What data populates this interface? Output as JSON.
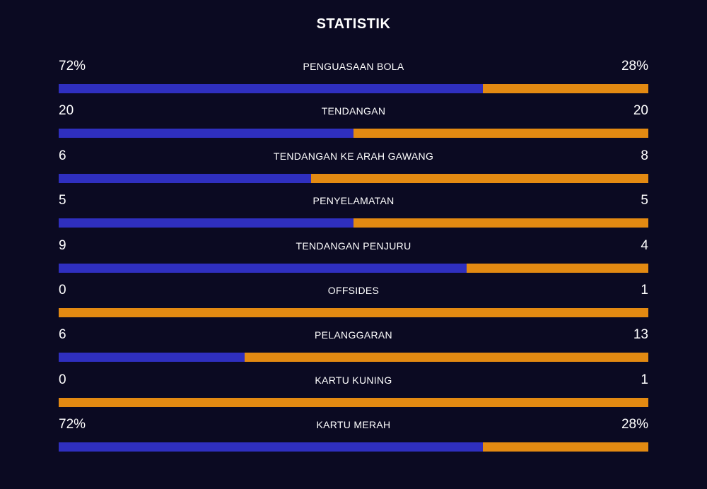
{
  "title": "STATISTIK",
  "colors": {
    "background": "#0b0a22",
    "home_bar": "#2f2fbf",
    "away_bar": "#e38a12",
    "text": "#ffffff"
  },
  "stats": [
    {
      "label": "PENGUASAAN BOLA",
      "home": "72%",
      "away": "28%",
      "home_share": 0.72
    },
    {
      "label": "TENDANGAN",
      "home": "20",
      "away": "20",
      "home_share": 0.5
    },
    {
      "label": "TENDANGAN KE ARAH GAWANG",
      "home": "6",
      "away": "8",
      "home_share": 0.4286
    },
    {
      "label": "PENYELAMATAN",
      "home": "5",
      "away": "5",
      "home_share": 0.5
    },
    {
      "label": "TENDANGAN PENJURU",
      "home": "9",
      "away": "4",
      "home_share": 0.6923
    },
    {
      "label": "OFFSIDES",
      "home": "0",
      "away": "1",
      "home_share": 0
    },
    {
      "label": "PELANGGARAN",
      "home": "6",
      "away": "13",
      "home_share": 0.3158
    },
    {
      "label": "KARTU KUNING",
      "home": "0",
      "away": "1",
      "home_share": 0
    },
    {
      "label": "KARTU MERAH",
      "home": "72%",
      "away": "28%",
      "home_share": 0.72
    }
  ]
}
